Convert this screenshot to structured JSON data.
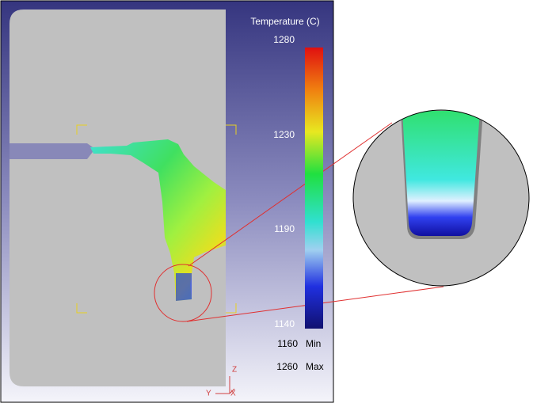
{
  "legend": {
    "title": "Temperature (C)",
    "ticks": [
      1280,
      1230,
      1190,
      1140
    ],
    "min_value": "1160",
    "min_label": "Min",
    "max_value": "1260",
    "max_label": "Max"
  },
  "axes": {
    "z": "Z",
    "y": "Y",
    "x": "X"
  }
}
